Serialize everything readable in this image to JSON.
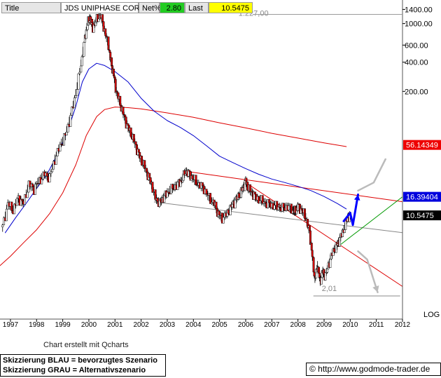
{
  "header": {
    "title_label": "Title",
    "name": "JDS UNIPHASE CORP",
    "net_label": "Net%",
    "net_value": "2.80",
    "last_label": "Last",
    "last_value": "10.5475",
    "net_color": "#22cc22",
    "last_color": "#ffff00"
  },
  "footer": {
    "credit": "Chart erstellt mit Qcharts",
    "legend_blue": "Skizzierung BLAU = bevorzugtes Szenario",
    "legend_gray": "Skizzierung GRAU = Alternativszenario",
    "url": "© http://www.godmode-trader.de"
  },
  "chart_data": {
    "type": "line",
    "yscale": "log",
    "ylim": [
      0.9,
      1750
    ],
    "xlim": [
      1996.6,
      2012.0
    ],
    "y_scale_label": "LOG",
    "y_ticks": [
      {
        "value": 1400,
        "label": "1400.00"
      },
      {
        "value": 1000,
        "label": "1000.00"
      },
      {
        "value": 600,
        "label": "600.00"
      },
      {
        "value": 400,
        "label": "400.00"
      },
      {
        "value": 200,
        "label": "200.00"
      }
    ],
    "x_ticks": [
      1997,
      1998,
      1999,
      2000,
      2001,
      2002,
      2003,
      2004,
      2005,
      2006,
      2007,
      2008,
      2009,
      2010,
      2011,
      2012
    ],
    "price_labels": [
      {
        "value": 56.14349,
        "text": "56.14349",
        "color": "#ee0000",
        "text_color": "#ffffff"
      },
      {
        "value": 16.39404,
        "text": "16.39404",
        "color": "#0000dd",
        "text_color": "#ffffff"
      },
      {
        "value": 10.5475,
        "text": "10.5475",
        "color": "#000000",
        "text_color": "#ffffff"
      }
    ],
    "annotations": [
      {
        "text": "1.227,00",
        "x": 2006.3,
        "y": 1200
      },
      {
        "text": "2,01",
        "x": 2009.2,
        "y": 1.75
      }
    ],
    "price_series": {
      "name": "",
      "points": [
        [
          1996.7,
          8
        ],
        [
          1996.9,
          14
        ],
        [
          1997.1,
          12
        ],
        [
          1997.3,
          16
        ],
        [
          1997.5,
          14
        ],
        [
          1997.7,
          22
        ],
        [
          1997.9,
          20
        ],
        [
          1998.1,
          24
        ],
        [
          1998.3,
          28
        ],
        [
          1998.5,
          26
        ],
        [
          1998.7,
          40
        ],
        [
          1998.9,
          55
        ],
        [
          1999.1,
          70
        ],
        [
          1999.3,
          110
        ],
        [
          1999.5,
          190
        ],
        [
          1999.7,
          380
        ],
        [
          1999.85,
          700
        ],
        [
          1999.95,
          1000
        ],
        [
          2000.05,
          1150
        ],
        [
          2000.15,
          900
        ],
        [
          2000.3,
          1100
        ],
        [
          2000.45,
          1227
        ],
        [
          2000.6,
          850
        ],
        [
          2000.75,
          600
        ],
        [
          2000.85,
          400
        ],
        [
          2000.95,
          300
        ],
        [
          2001.05,
          200
        ],
        [
          2001.2,
          150
        ],
        [
          2001.35,
          110
        ],
        [
          2001.5,
          85
        ],
        [
          2001.65,
          70
        ],
        [
          2001.8,
          55
        ],
        [
          2001.95,
          42
        ],
        [
          2002.1,
          35
        ],
        [
          2002.25,
          28
        ],
        [
          2002.4,
          22
        ],
        [
          2002.55,
          16
        ],
        [
          2002.7,
          14
        ],
        [
          2002.85,
          16
        ],
        [
          2003.0,
          18
        ],
        [
          2003.2,
          20
        ],
        [
          2003.4,
          22
        ],
        [
          2003.55,
          24
        ],
        [
          2003.7,
          30
        ],
        [
          2003.85,
          28
        ],
        [
          2004.0,
          25
        ],
        [
          2004.2,
          22
        ],
        [
          2004.4,
          20
        ],
        [
          2004.6,
          16
        ],
        [
          2004.8,
          14
        ],
        [
          2004.95,
          11
        ],
        [
          2005.1,
          10
        ],
        [
          2005.3,
          11
        ],
        [
          2005.45,
          13
        ],
        [
          2005.6,
          15
        ],
        [
          2005.75,
          17
        ],
        [
          2005.9,
          20
        ],
        [
          2006.0,
          24
        ],
        [
          2006.1,
          20
        ],
        [
          2006.25,
          18
        ],
        [
          2006.4,
          16
        ],
        [
          2006.6,
          15
        ],
        [
          2006.8,
          14
        ],
        [
          2007.0,
          13.5
        ],
        [
          2007.2,
          13
        ],
        [
          2007.4,
          12.5
        ],
        [
          2007.6,
          13
        ],
        [
          2007.8,
          12
        ],
        [
          2007.9,
          11.5
        ],
        [
          2008.0,
          13
        ],
        [
          2008.15,
          12
        ],
        [
          2008.3,
          10
        ],
        [
          2008.45,
          7
        ],
        [
          2008.55,
          4
        ],
        [
          2008.65,
          2.3
        ],
        [
          2008.75,
          3.2
        ],
        [
          2008.85,
          2.2
        ],
        [
          2008.95,
          2.8
        ],
        [
          2009.05,
          2.5
        ],
        [
          2009.2,
          3.5
        ],
        [
          2009.35,
          4.5
        ],
        [
          2009.5,
          5.2
        ],
        [
          2009.6,
          6
        ],
        [
          2009.75,
          7.5
        ],
        [
          2009.9,
          10
        ],
        [
          2010.0,
          10.5475
        ]
      ]
    },
    "ma_blue": {
      "name": "",
      "color": "#0000cc",
      "points": [
        [
          1996.8,
          7
        ],
        [
          1997.2,
          10
        ],
        [
          1997.6,
          14
        ],
        [
          1998.0,
          20
        ],
        [
          1998.4,
          28
        ],
        [
          1998.8,
          45
        ],
        [
          1999.2,
          80
        ],
        [
          1999.5,
          140
        ],
        [
          1999.75,
          250
        ],
        [
          2000.0,
          340
        ],
        [
          2000.3,
          390
        ],
        [
          2000.6,
          370
        ],
        [
          2001.0,
          320
        ],
        [
          2001.5,
          250
        ],
        [
          2002.0,
          170
        ],
        [
          2002.5,
          125
        ],
        [
          2003.0,
          100
        ],
        [
          2003.5,
          85
        ],
        [
          2004.0,
          70
        ],
        [
          2004.5,
          55
        ],
        [
          2005.0,
          43
        ],
        [
          2005.5,
          37
        ],
        [
          2006.0,
          32
        ],
        [
          2006.5,
          28
        ],
        [
          2007.0,
          25
        ],
        [
          2007.5,
          23
        ],
        [
          2008.0,
          21
        ],
        [
          2008.5,
          19
        ],
        [
          2009.0,
          16.5
        ],
        [
          2009.5,
          14
        ],
        [
          2009.85,
          12.3
        ]
      ]
    },
    "ma_red": {
      "name": "",
      "color": "#dd0000",
      "points": [
        [
          1996.6,
          3.2
        ],
        [
          1997.0,
          4
        ],
        [
          1997.5,
          5.5
        ],
        [
          1998.0,
          7.5
        ],
        [
          1998.5,
          11
        ],
        [
          1999.0,
          18
        ],
        [
          1999.5,
          35
        ],
        [
          1999.9,
          70
        ],
        [
          2000.3,
          110
        ],
        [
          2000.6,
          130
        ],
        [
          2001.0,
          138
        ],
        [
          2001.5,
          136
        ],
        [
          2002.0,
          132
        ],
        [
          2003.0,
          120
        ],
        [
          2004.0,
          108
        ],
        [
          2005.0,
          95
        ],
        [
          2006.0,
          84
        ],
        [
          2007.0,
          74
        ],
        [
          2008.0,
          66
        ],
        [
          2009.0,
          59
        ],
        [
          2009.85,
          54
        ]
      ]
    },
    "lines": [
      {
        "color": "#dd0000",
        "points": [
          [
            2003.7,
            30
          ],
          [
            2012.0,
            14.6
          ]
        ]
      },
      {
        "color": "#dd0000",
        "points": [
          [
            2006.0,
            23
          ],
          [
            2012.0,
            1.95
          ]
        ]
      },
      {
        "color": "#888888",
        "points": [
          [
            2002.5,
            14.5
          ],
          [
            2012.0,
            7.0
          ]
        ]
      },
      {
        "color": "#888888",
        "points": [
          [
            2008.6,
            1.56
          ],
          [
            2011.9,
            1.56
          ]
        ]
      },
      {
        "color": "#009900",
        "points": [
          [
            2009.6,
            5.2
          ],
          [
            2012.0,
            16.4
          ]
        ]
      }
    ],
    "scenario_blue": {
      "color": "#0000ff",
      "points": [
        [
          2009.75,
          9.2
        ],
        [
          2010.0,
          11.2
        ],
        [
          2010.1,
          8.4
        ],
        [
          2010.3,
          17.3
        ]
      ],
      "arrow_end": true
    },
    "scenario_gray": [
      {
        "color": "#bbbbbb",
        "points": [
          [
            2010.3,
            19
          ],
          [
            2010.9,
            23
          ],
          [
            2011.35,
            40
          ]
        ]
      },
      {
        "color": "#bbbbbb",
        "points": [
          [
            2010.3,
            4.5
          ],
          [
            2010.65,
            3.7
          ],
          [
            2011.05,
            1.7
          ]
        ],
        "arrow_end": true
      }
    ]
  }
}
